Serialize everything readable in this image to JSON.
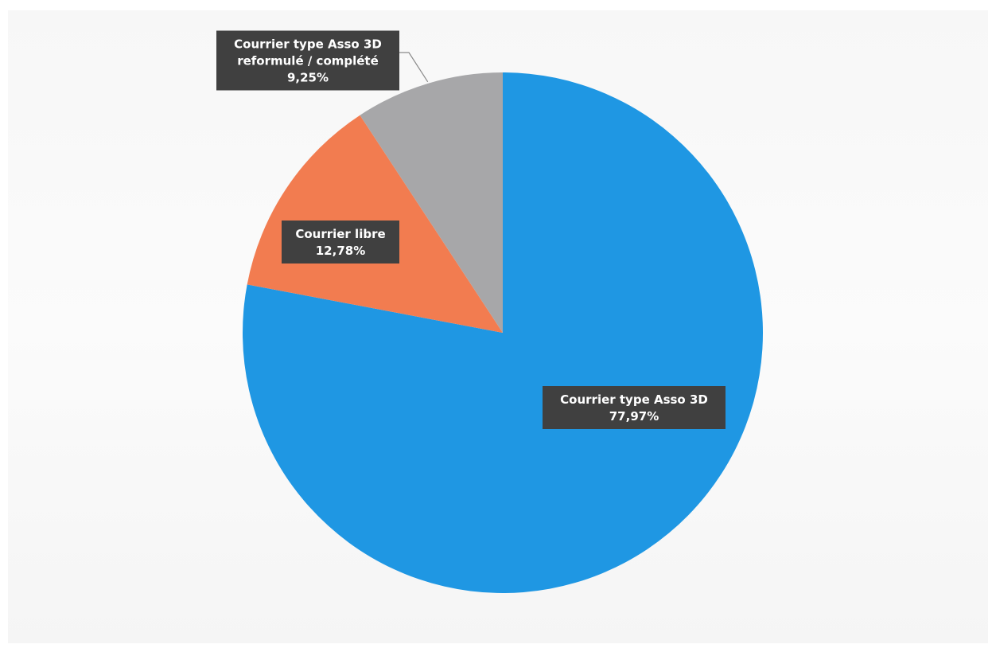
{
  "chart_data": {
    "type": "pie",
    "title": "",
    "slices": [
      {
        "label": "Courrier type Asso 3D",
        "value": 77.97,
        "value_text": "77,97%",
        "color": "#1f97e3"
      },
      {
        "label": "Courrier libre",
        "value": 12.78,
        "value_text": "12,78%",
        "color": "#f27c50"
      },
      {
        "label": "Courrier type Asso 3D reformulé / complété",
        "label_lines": [
          "Courrier type Asso 3D",
          "reformulé / complété"
        ],
        "value": 9.25,
        "value_text": "9,25%",
        "color": "#a7a7a9"
      }
    ],
    "start_angle": "12 o'clock",
    "direction": "clockwise",
    "legend": "none",
    "data_labels": "dark callout boxes"
  }
}
